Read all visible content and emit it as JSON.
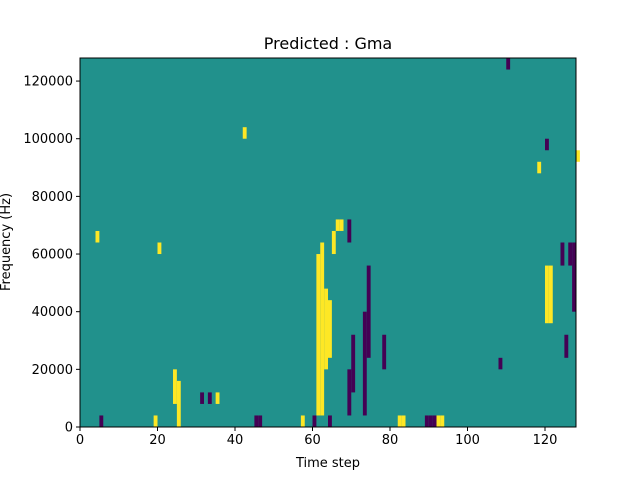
{
  "chart_data": {
    "type": "heatmap",
    "title": "Predicted : Gma",
    "xlabel": "Time step",
    "ylabel": "Frequency (Hz)",
    "xlim": [
      0,
      128
    ],
    "ylim": [
      0,
      128000
    ],
    "x_ticks": [
      0,
      20,
      40,
      60,
      80,
      100,
      120
    ],
    "y_ticks": [
      0,
      20000,
      40000,
      60000,
      80000,
      100000,
      120000
    ],
    "x_tick_labels": [
      "0",
      "20",
      "40",
      "60",
      "80",
      "100",
      "120"
    ],
    "y_tick_labels": [
      "0",
      "20000",
      "40000",
      "60000",
      "80000",
      "100000",
      "120000"
    ],
    "grid": false,
    "legend": "none",
    "colormap": "viridis",
    "levels": {
      "background": 0,
      "low": -1,
      "high": 1
    },
    "colors": {
      "background": "#21918c",
      "low": "#440154",
      "high": "#fde725"
    },
    "bin_width_hz": 4000,
    "num_time_steps": 128,
    "cells_high": [
      {
        "t": 61,
        "f": [
          4000,
          60000
        ]
      },
      {
        "t": 62,
        "f": [
          4000,
          64000
        ]
      },
      {
        "t": 63,
        "f": [
          20000,
          48000
        ]
      },
      {
        "t": 64,
        "f": [
          24000,
          44000
        ]
      },
      {
        "t": 65,
        "f": [
          60000,
          68000
        ]
      },
      {
        "t": 66,
        "f": [
          68000,
          72000
        ]
      },
      {
        "t": 67,
        "f": [
          68000,
          72000
        ]
      },
      {
        "t": 24,
        "f": [
          8000,
          20000
        ]
      },
      {
        "t": 25,
        "f": [
          0,
          16000
        ]
      },
      {
        "t": 120,
        "f": [
          36000,
          56000
        ]
      },
      {
        "t": 121,
        "f": [
          36000,
          56000
        ]
      },
      {
        "t": 19,
        "f": [
          0,
          4000
        ]
      },
      {
        "t": 35,
        "f": [
          8000,
          12000
        ]
      },
      {
        "t": 57,
        "f": [
          0,
          4000
        ]
      },
      {
        "t": 82,
        "f": [
          0,
          4000
        ]
      },
      {
        "t": 83,
        "f": [
          0,
          4000
        ]
      },
      {
        "t": 92,
        "f": [
          0,
          4000
        ]
      },
      {
        "t": 93,
        "f": [
          0,
          4000
        ]
      },
      {
        "t": 4,
        "f": [
          64000,
          68000
        ]
      },
      {
        "t": 20,
        "f": [
          60000,
          64000
        ]
      },
      {
        "t": 42,
        "f": [
          100000,
          104000
        ]
      },
      {
        "t": 118,
        "f": [
          88000,
          92000
        ]
      },
      {
        "t": 128,
        "f": [
          92000,
          96000
        ]
      }
    ],
    "cells_low": [
      {
        "t": 69,
        "f": [
          4000,
          20000
        ]
      },
      {
        "t": 70,
        "f": [
          12000,
          32000
        ]
      },
      {
        "t": 74,
        "f": [
          24000,
          56000
        ]
      },
      {
        "t": 69,
        "f": [
          64000,
          72000
        ]
      },
      {
        "t": 73,
        "f": [
          4000,
          40000
        ]
      },
      {
        "t": 89,
        "f": [
          0,
          4000
        ]
      },
      {
        "t": 90,
        "f": [
          0,
          4000
        ]
      },
      {
        "t": 91,
        "f": [
          0,
          4000
        ]
      },
      {
        "t": 60,
        "f": [
          0,
          4000
        ]
      },
      {
        "t": 127,
        "f": [
          40000,
          64000
        ]
      },
      {
        "t": 126,
        "f": [
          56000,
          64000
        ]
      },
      {
        "t": 64,
        "f": [
          0,
          4000
        ]
      },
      {
        "t": 33,
        "f": [
          8000,
          12000
        ]
      },
      {
        "t": 31,
        "f": [
          8000,
          12000
        ]
      },
      {
        "t": 5,
        "f": [
          0,
          4000
        ]
      },
      {
        "t": 125,
        "f": [
          24000,
          32000
        ]
      },
      {
        "t": 120,
        "f": [
          96000,
          100000
        ]
      },
      {
        "t": 108,
        "f": [
          20000,
          24000
        ]
      },
      {
        "t": 78,
        "f": [
          20000,
          32000
        ]
      },
      {
        "t": 124,
        "f": [
          56000,
          64000
        ]
      },
      {
        "t": 45,
        "f": [
          0,
          4000
        ]
      },
      {
        "t": 46,
        "f": [
          0,
          4000
        ]
      },
      {
        "t": 110,
        "f": [
          124000,
          128000
        ]
      }
    ]
  }
}
